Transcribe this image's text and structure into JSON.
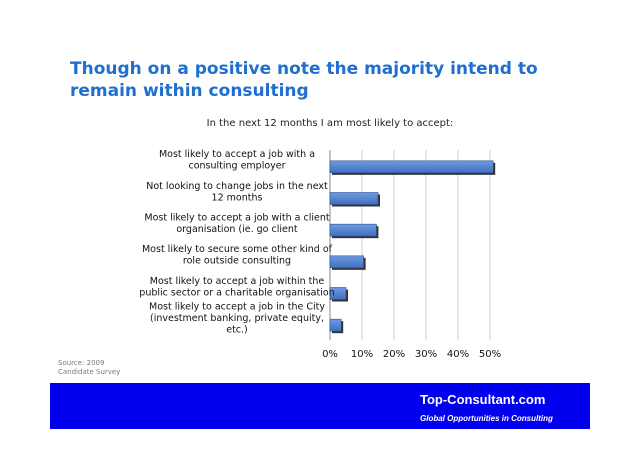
{
  "slide": {
    "title_line1": "Though on a positive note the majority intend to",
    "title_line2": "remain within consulting",
    "source_line1": "Source: 2009",
    "source_line2": "Candidate Survey"
  },
  "footer": {
    "brand": "Top-Consultant.com",
    "tagline": "Global Opportunities in Consulting",
    "background_color": "#0000ee"
  },
  "chart_data": {
    "type": "bar",
    "orientation": "horizontal",
    "title": "In the next 12 months I am most likely to accept:",
    "categories": [
      [
        "Most likely to accept a job with a",
        "consulting employer"
      ],
      [
        "Not looking to change jobs in the next",
        "12 months"
      ],
      [
        "Most likely to accept a job with a client",
        "organisation (ie. go client"
      ],
      [
        "Most likely to secure some other kind of",
        "role outside consulting"
      ],
      [
        "Most likely to accept a job within the",
        "public sector or a charitable organisation"
      ],
      [
        "Most likely to accept a job in the City",
        "(investment banking, private equity,",
        "etc.)"
      ]
    ],
    "values": [
      51,
      15,
      14.5,
      10.5,
      5,
      3.5
    ],
    "xlim": [
      0,
      50
    ],
    "xticks": [
      0,
      10,
      20,
      30,
      40,
      50
    ],
    "xtick_labels": [
      "0%",
      "10%",
      "20%",
      "30%",
      "40%",
      "50%"
    ],
    "xlabel": "",
    "ylabel": "",
    "bar_color": "#3f6fc0",
    "grid": true
  }
}
